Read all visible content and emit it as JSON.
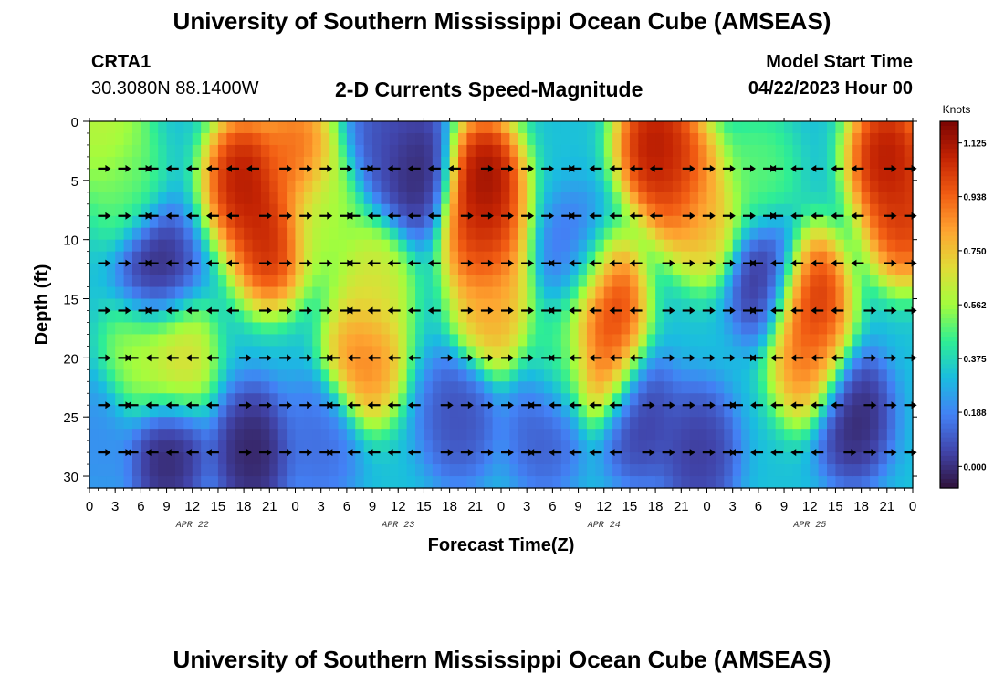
{
  "header": {
    "title": "University of Southern Mississippi Ocean Cube (AMSEAS)",
    "station": "CRTA1",
    "coords": "30.3080N  88.1400W",
    "subtitle": "2-D Currents Speed-Magnitude",
    "model_label": "Model Start Time",
    "model_time": "04/22/2023 Hour 00"
  },
  "footer": {
    "title": "University of Southern Mississippi Ocean Cube (AMSEAS)"
  },
  "chart_data": {
    "type": "heatmap",
    "title": "2-D Currents Speed-Magnitude",
    "xlabel": "Forecast Time(Z)",
    "ylabel": "Depth (ft)",
    "x_range_hours": [
      0,
      96
    ],
    "ylim": [
      31,
      0
    ],
    "x_tick_labels": [
      "0",
      "3",
      "6",
      "9",
      "12",
      "15",
      "18",
      "21",
      "0",
      "3",
      "6",
      "9",
      "12",
      "15",
      "18",
      "21",
      "0",
      "3",
      "6",
      "9",
      "12",
      "15",
      "18",
      "21",
      "0",
      "3",
      "6",
      "9",
      "12",
      "15",
      "18",
      "21",
      "0"
    ],
    "date_labels": [
      {
        "label": "APR 22",
        "hour": 12
      },
      {
        "label": "APR 23",
        "hour": 36
      },
      {
        "label": "APR 24",
        "hour": 60
      },
      {
        "label": "APR 25",
        "hour": 84
      }
    ],
    "y_ticks": [
      0,
      5,
      10,
      15,
      20,
      25,
      30
    ],
    "colorbar": {
      "units": "Knots",
      "min": -0.075,
      "max": 1.2,
      "ticks": [
        0.0,
        0.188,
        0.375,
        0.562,
        0.75,
        0.938,
        1.125
      ],
      "tick_labels": [
        "0.000",
        "0.188",
        "0.375",
        "0.562",
        "0.750",
        "0.938",
        "1.125"
      ]
    },
    "vector_depths_ft": [
      4,
      8,
      12,
      16,
      20,
      24,
      28
    ],
    "speed_hotspots": [
      {
        "hour": 18,
        "depth": 5,
        "speed": 1.2
      },
      {
        "hour": 21,
        "depth": 10,
        "speed": 1.15
      },
      {
        "hour": 24,
        "depth": 3,
        "speed": 1.0
      },
      {
        "hour": 32,
        "depth": 20,
        "speed": 0.95
      },
      {
        "hour": 33,
        "depth": 14,
        "speed": 0.7
      },
      {
        "hour": 46,
        "depth": 5,
        "speed": 1.25
      },
      {
        "hour": 46,
        "depth": 10,
        "speed": 1.1
      },
      {
        "hour": 47,
        "depth": 16,
        "speed": 0.85
      },
      {
        "hour": 60,
        "depth": 15,
        "speed": 1.15
      },
      {
        "hour": 60,
        "depth": 20,
        "speed": 1.0
      },
      {
        "hour": 66,
        "depth": 2,
        "speed": 1.2
      },
      {
        "hour": 69,
        "depth": 5,
        "speed": 1.1
      },
      {
        "hour": 72,
        "depth": 8,
        "speed": 0.8
      },
      {
        "hour": 84,
        "depth": 15,
        "speed": 1.15
      },
      {
        "hour": 84,
        "depth": 20,
        "speed": 0.95
      },
      {
        "hour": 93,
        "depth": 3,
        "speed": 1.2
      },
      {
        "hour": 95,
        "depth": 8,
        "speed": 1.1
      },
      {
        "hour": 10,
        "depth": 20,
        "speed": 0.75
      },
      {
        "hour": 6,
        "depth": 20,
        "speed": 0.6
      },
      {
        "hour": 27,
        "depth": 8,
        "speed": 0.6
      },
      {
        "hour": 4,
        "depth": 5,
        "speed": 0.5
      },
      {
        "hour": 2,
        "depth": 1,
        "speed": 0.65
      },
      {
        "hour": 55,
        "depth": 20,
        "speed": 0.45
      },
      {
        "hour": 78,
        "depth": 5,
        "speed": 0.5
      }
    ],
    "speed_lows": [
      {
        "hour": 8,
        "depth": 13,
        "speed": -0.05
      },
      {
        "hour": 9,
        "depth": 28,
        "speed": -0.06
      },
      {
        "hour": 19,
        "depth": 28,
        "speed": -0.07
      },
      {
        "hour": 38,
        "depth": 4,
        "speed": -0.06
      },
      {
        "hour": 35,
        "depth": 1,
        "speed": 0.05
      },
      {
        "hour": 43,
        "depth": 25,
        "speed": 0.05
      },
      {
        "hour": 57,
        "depth": 12,
        "speed": 0.1
      },
      {
        "hour": 64,
        "depth": 25,
        "speed": 0.0
      },
      {
        "hour": 71,
        "depth": 28,
        "speed": 0.0
      },
      {
        "hour": 79,
        "depth": 13,
        "speed": -0.04
      },
      {
        "hour": 89,
        "depth": 25,
        "speed": -0.06
      },
      {
        "hour": 53,
        "depth": 26,
        "speed": 0.08
      },
      {
        "hour": 27,
        "depth": 27,
        "speed": 0.12
      },
      {
        "hour": 1,
        "depth": 27,
        "speed": 0.2
      }
    ]
  }
}
